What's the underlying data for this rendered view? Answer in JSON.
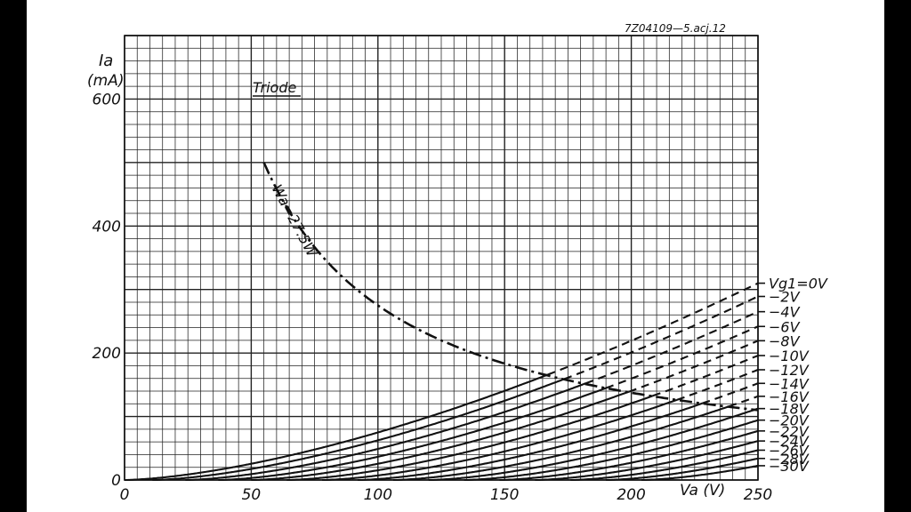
{
  "chart_data": {
    "type": "line",
    "title": "Triode",
    "code": "7Z04109—5.acj.12",
    "xlabel": "Va (V)",
    "ylabel_symbol": "Ia",
    "ylabel_unit": "(mA)",
    "xlim": [
      0,
      250
    ],
    "ylim": [
      0,
      700
    ],
    "x_ticks": [
      "0",
      "50",
      "100",
      "150",
      "200",
      "250"
    ],
    "y_ticks": [
      "0",
      "200",
      "400",
      "600"
    ],
    "grid": true,
    "series": [
      {
        "name": "Vg1=0V",
        "label": "Vg1=0V",
        "x0": 0,
        "k": 0.0595,
        "n": 1.55
      },
      {
        "name": "-2V",
        "label": "−2V",
        "x0": 11,
        "k": 0.0595,
        "n": 1.55
      },
      {
        "name": "-4V",
        "label": "−4V",
        "x0": 24,
        "k": 0.0595,
        "n": 1.55
      },
      {
        "name": "-6V",
        "label": "−6V",
        "x0": 37,
        "k": 0.0595,
        "n": 1.55
      },
      {
        "name": "-8V",
        "label": "−8V",
        "x0": 50,
        "k": 0.0595,
        "n": 1.55
      },
      {
        "name": "-10V",
        "label": "−10V",
        "x0": 64,
        "k": 0.0595,
        "n": 1.55
      },
      {
        "name": "-12V",
        "label": "−12V",
        "x0": 78,
        "k": 0.0595,
        "n": 1.55
      },
      {
        "name": "-14V",
        "label": "−14V",
        "x0": 92,
        "k": 0.0595,
        "n": 1.55
      },
      {
        "name": "-16V",
        "label": "−16V",
        "x0": 106,
        "k": 0.0595,
        "n": 1.55
      },
      {
        "name": "-18V",
        "label": "−18V",
        "x0": 120,
        "k": 0.0595,
        "n": 1.55
      },
      {
        "name": "-20V",
        "label": "−20V",
        "x0": 134,
        "k": 0.0595,
        "n": 1.55
      },
      {
        "name": "-22V",
        "label": "−22V",
        "x0": 148,
        "k": 0.0595,
        "n": 1.55
      },
      {
        "name": "-24V",
        "label": "−24V",
        "x0": 162,
        "k": 0.0595,
        "n": 1.55
      },
      {
        "name": "-26V",
        "label": "−26V",
        "x0": 176,
        "k": 0.0595,
        "n": 1.55
      },
      {
        "name": "-28V",
        "label": "−28V",
        "x0": 190,
        "k": 0.0595,
        "n": 1.55
      },
      {
        "name": "-30V",
        "label": "−30V",
        "x0": 204,
        "k": 0.0595,
        "n": 1.55
      }
    ],
    "power_limit": {
      "label": "Wa=27.5W",
      "watts": 27.5,
      "x_from": 55,
      "x_to": 250
    }
  }
}
